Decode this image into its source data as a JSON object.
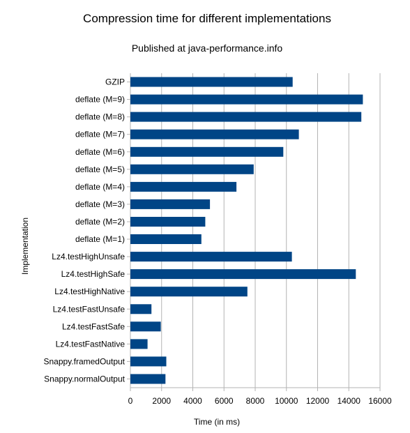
{
  "chart_data": {
    "type": "bar",
    "orientation": "horizontal",
    "title": "Compression time for different implementations",
    "subtitle": "Published at java-performance.info",
    "xlabel": "Time (in ms)",
    "ylabel": "Implementation",
    "xlim": [
      0,
      16000
    ],
    "xticks": [
      0,
      2000,
      4000,
      6000,
      8000,
      10000,
      12000,
      14000,
      16000
    ],
    "grid": "vertical",
    "legend": "none",
    "bar_color": "#004586",
    "grid_color": "#b3b3b3",
    "categories": [
      "GZIP",
      "deflate (M=9)",
      "deflate (M=8)",
      "deflate (M=7)",
      "deflate (M=6)",
      "deflate (M=5)",
      "deflate (M=4)",
      "deflate (M=3)",
      "deflate (M=2)",
      "deflate (M=1)",
      "Lz4.testHighUnsafe",
      "Lz4.testHighSafe",
      "Lz4.testHighNative",
      "Lz4.testFastUnsafe",
      "Lz4.testFastSafe",
      "Lz4.testFastNative",
      "Snappy.framedOutput",
      "Snappy.normalOutput"
    ],
    "values": [
      10400,
      14900,
      14800,
      10800,
      9800,
      7900,
      6800,
      5100,
      4800,
      4550,
      10350,
      14450,
      7500,
      1350,
      1950,
      1100,
      2300,
      2250
    ]
  }
}
